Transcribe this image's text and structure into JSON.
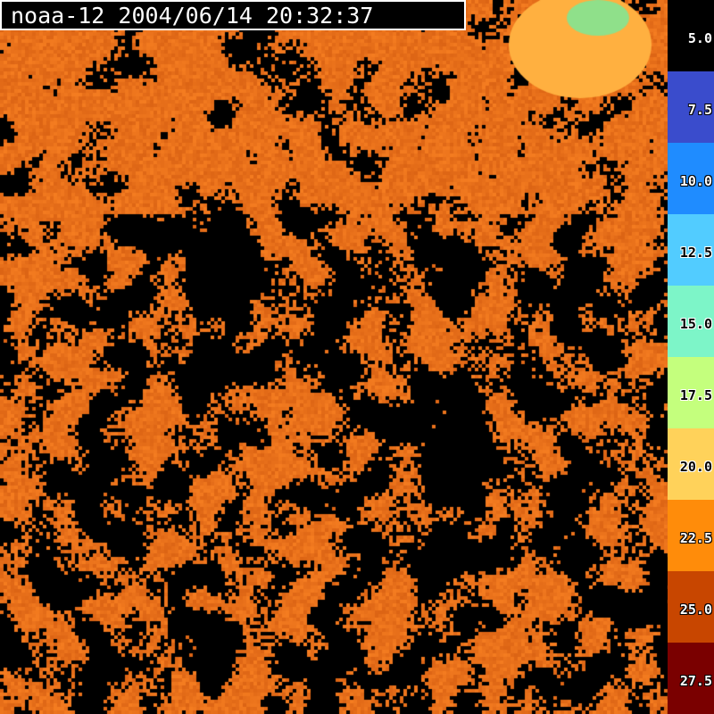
{
  "title": "noaa-12 2004/06/14 20:32:37",
  "colorbar": [
    {
      "label": "5.0",
      "color": "#000000",
      "text": "dark"
    },
    {
      "label": "7.5",
      "color": "#3a4ccc",
      "text": "dark"
    },
    {
      "label": "10.0",
      "color": "#1f8cff",
      "text": "dark"
    },
    {
      "label": "12.5",
      "color": "#52ccff",
      "text": "light"
    },
    {
      "label": "15.0",
      "color": "#7df5c8",
      "text": "light"
    },
    {
      "label": "17.5",
      "color": "#c4ff7d",
      "text": "light"
    },
    {
      "label": "20.0",
      "color": "#ffd25a",
      "text": "light"
    },
    {
      "label": "22.5",
      "color": "#ff8c0a",
      "text": "dark"
    },
    {
      "label": "25.0",
      "color": "#c84600",
      "text": "dark"
    },
    {
      "label": "27.5",
      "color": "#7a0000",
      "text": "dark"
    }
  ],
  "cloud_mask_color": "#000000",
  "dominant_sst_color": "#e8701a"
}
